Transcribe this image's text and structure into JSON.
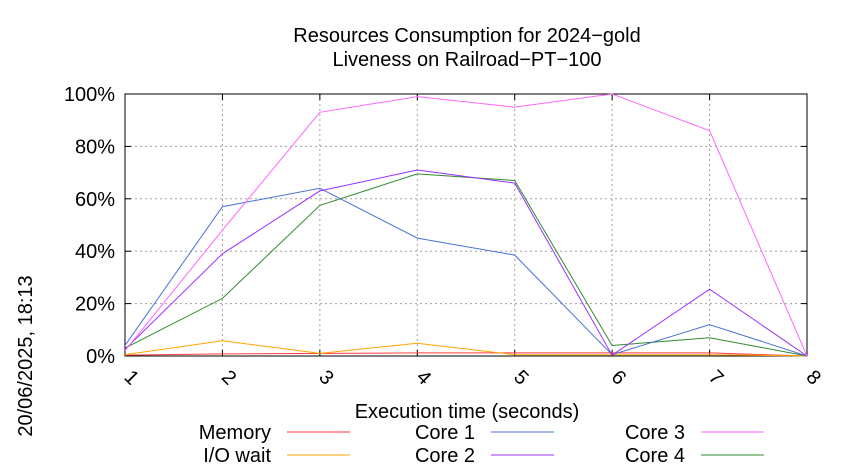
{
  "chart_data": {
    "type": "line",
    "title": "Resources Consumption for 2024−gold",
    "subtitle": "Liveness on Railroad−PT−100",
    "xlabel": "Execution time (seconds)",
    "ylabel": "",
    "side_label": "20/06/2025, 18:13",
    "xlim": [
      1,
      8
    ],
    "ylim": [
      0,
      100
    ],
    "x_ticks": [
      1,
      2,
      3,
      4,
      5,
      6,
      7,
      8
    ],
    "y_ticks": [
      0,
      20,
      40,
      60,
      80,
      100
    ],
    "y_tick_labels": [
      "0%",
      "20%",
      "40%",
      "60%",
      "80%",
      "100%"
    ],
    "grid": true,
    "legend_position": "bottom",
    "series": [
      {
        "name": "Memory",
        "color": "#ff3b3b",
        "x": [
          1,
          2,
          3,
          4,
          5,
          6,
          7,
          8
        ],
        "values": [
          0.3,
          0.8,
          1.0,
          1.2,
          1.2,
          1.2,
          1.2,
          0
        ]
      },
      {
        "name": "I/O wait",
        "color": "#ffa500",
        "x": [
          1,
          2,
          3,
          4,
          5,
          6,
          7,
          8
        ],
        "values": [
          0.5,
          5.8,
          1.0,
          4.9,
          0.5,
          0.5,
          0.5,
          0
        ]
      },
      {
        "name": "Core 1",
        "color": "#4a72d4",
        "x": [
          1,
          2,
          3,
          4,
          5,
          6,
          7,
          8
        ],
        "values": [
          4,
          57,
          64,
          45,
          38.5,
          0.5,
          12,
          0
        ]
      },
      {
        "name": "Core 2",
        "color": "#9b30ff",
        "x": [
          1,
          2,
          3,
          4,
          5,
          6,
          7,
          8
        ],
        "values": [
          2.5,
          39,
          63,
          71,
          66,
          0.3,
          25.5,
          0
        ]
      },
      {
        "name": "Core 3",
        "color": "#ff66ff",
        "x": [
          1,
          2,
          3,
          4,
          5,
          6,
          7,
          8
        ],
        "values": [
          2,
          48,
          93,
          99,
          95,
          100,
          86,
          0
        ]
      },
      {
        "name": "Core 4",
        "color": "#2e8b2e",
        "x": [
          1,
          2,
          3,
          4,
          5,
          6,
          7,
          8
        ],
        "values": [
          3,
          22,
          57.5,
          69.5,
          67,
          4,
          7,
          0
        ]
      }
    ]
  }
}
